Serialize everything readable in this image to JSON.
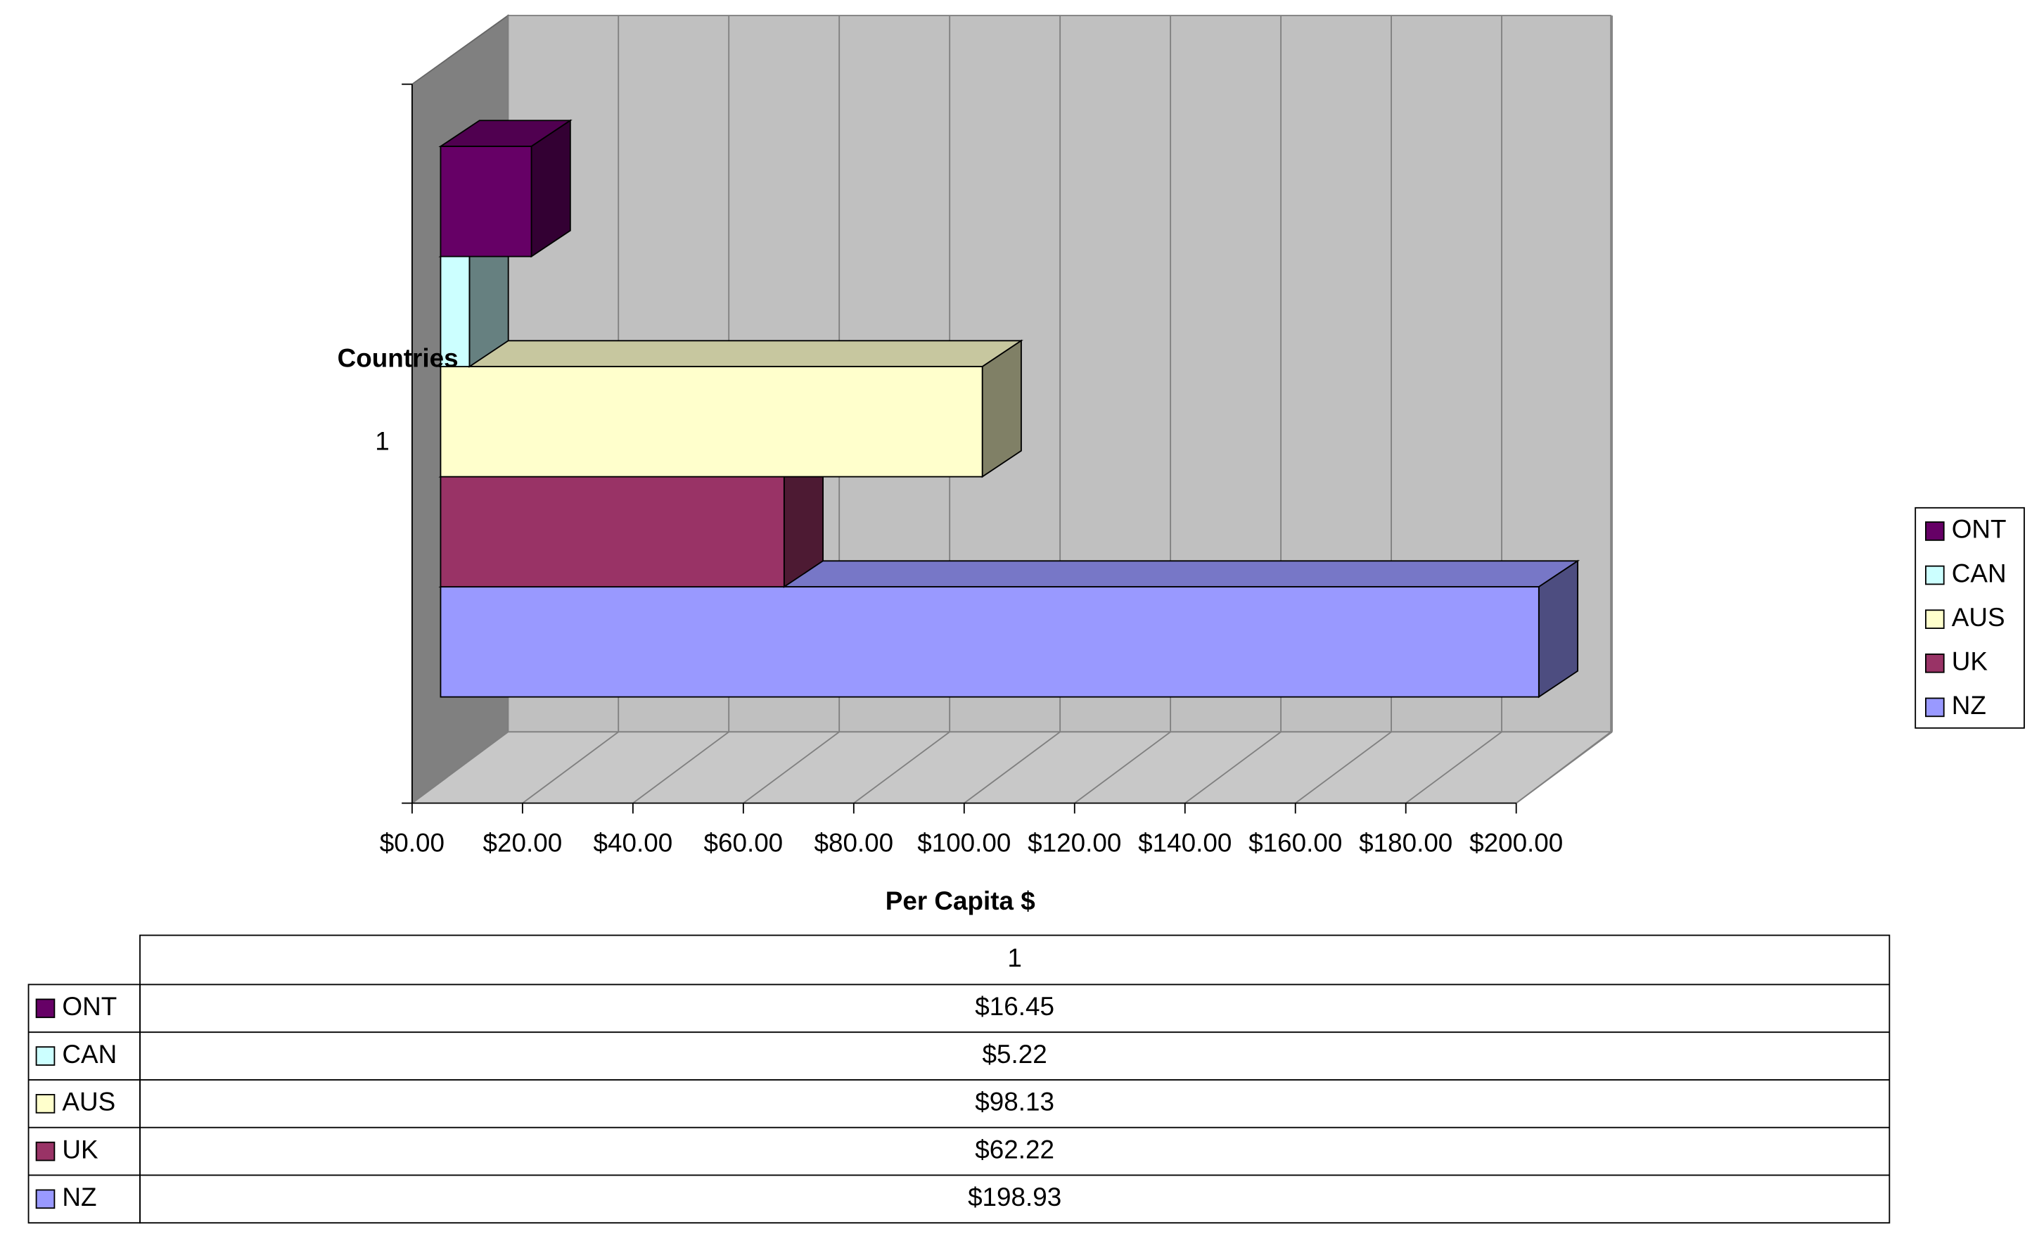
{
  "chart_data": {
    "type": "bar3d",
    "orientation": "horizontal",
    "categories": [
      "1"
    ],
    "series": [
      {
        "name": "ONT",
        "color": "#660066",
        "values": [
          16.45
        ],
        "value_labels": [
          "$16.45"
        ]
      },
      {
        "name": "CAN",
        "color": "#ccffff",
        "values": [
          5.22
        ],
        "value_labels": [
          "$5.22"
        ]
      },
      {
        "name": "AUS",
        "color": "#ffffcc",
        "values": [
          98.13
        ],
        "value_labels": [
          "$98.13"
        ]
      },
      {
        "name": "UK",
        "color": "#993366",
        "values": [
          62.22
        ],
        "value_labels": [
          "$62.22"
        ]
      },
      {
        "name": "NZ",
        "color": "#9999ff",
        "values": [
          198.93
        ],
        "value_labels": [
          "$198.93"
        ]
      }
    ],
    "x_label": "Per Capita $",
    "y_label": "Countries",
    "xlim": [
      0,
      200
    ],
    "xticks": [
      {
        "value": 0,
        "label": "$0.00"
      },
      {
        "value": 20,
        "label": "$20.00"
      },
      {
        "value": 40,
        "label": "$40.00"
      },
      {
        "value": 60,
        "label": "$60.00"
      },
      {
        "value": 80,
        "label": "$80.00"
      },
      {
        "value": 100,
        "label": "$100.00"
      },
      {
        "value": 120,
        "label": "$120.00"
      },
      {
        "value": 140,
        "label": "$140.00"
      },
      {
        "value": 160,
        "label": "$160.00"
      },
      {
        "value": 180,
        "label": "$180.00"
      },
      {
        "value": 200,
        "label": "$200.00"
      }
    ],
    "grid": true,
    "legend": "right",
    "data_table": true
  }
}
